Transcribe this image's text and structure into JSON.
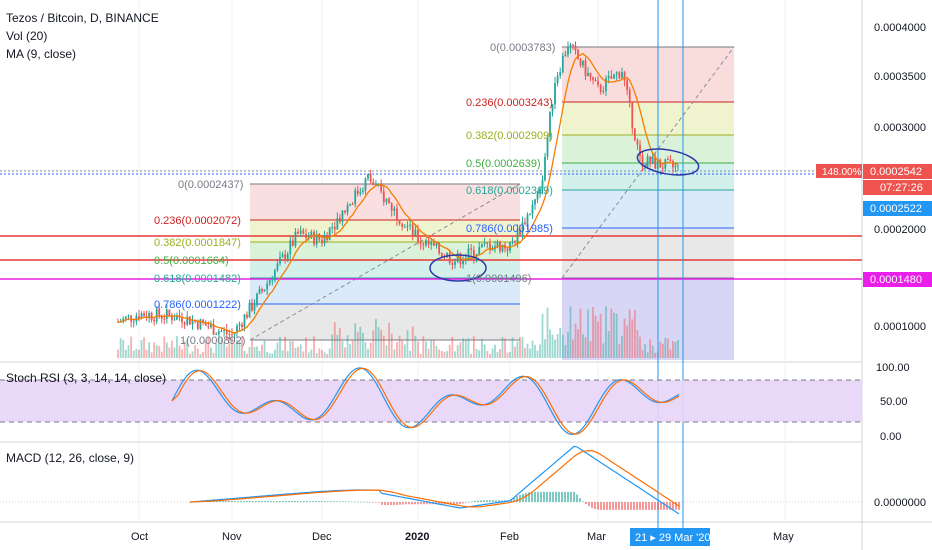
{
  "header": {
    "symbol": "Tezos / Bitcoin, D, BINANCE",
    "vol_label": "Vol (20)",
    "ma_label": "MA (9, close)"
  },
  "panels": {
    "stoch_label": "Stoch RSI (3, 3, 14, 14, close)",
    "macd_label": "MACD (12, 26, close, 9)"
  },
  "price_axis": {
    "ticks": [
      "0.0004000",
      "0.0003500",
      "0.0003000",
      "0.0002000",
      "0.0001000"
    ],
    "current_price": "0.0002542",
    "countdown": "07:27:26",
    "ma_value": "0.0002522",
    "level_tag": "0.0001480",
    "percent_tag": "148.00%"
  },
  "stoch_axis": {
    "ticks": [
      "100.00",
      "50.00",
      "0.00"
    ]
  },
  "macd_axis": {
    "ticks": [
      "0.0000000"
    ]
  },
  "time_axis": {
    "labels": [
      "Oct",
      "Nov",
      "Dec",
      "2020",
      "Feb",
      "Mar",
      "May"
    ],
    "range_tag": "21 ▸ 29 Mar '20"
  },
  "fib_right": [
    {
      "label": "0(0.0003783)",
      "color": "#787b86"
    },
    {
      "label": "0.236(0.0003243)",
      "color": "#cc1f1f"
    },
    {
      "label": "0.382(0.0002909)",
      "color": "#9aaf1f"
    },
    {
      "label": "0.5(0.0002639)",
      "color": "#3fae3f"
    },
    {
      "label": "0.618(0.0002369)",
      "color": "#26a69a"
    },
    {
      "label": "0.786(0.0001985)",
      "color": "#2962ff"
    },
    {
      "label": "1(0.0001496)",
      "color": "#787b86"
    }
  ],
  "fib_left": [
    {
      "label": "0(0.0002437)",
      "color": "#787b86"
    },
    {
      "label": "0.236(0.0002072)",
      "color": "#cc1f1f"
    },
    {
      "label": "0.382(0.0001847)",
      "color": "#9aaf1f"
    },
    {
      "label": "0.5(0.0001664)",
      "color": "#3fae3f"
    },
    {
      "label": "0.618(0.0001482)",
      "color": "#26a69a"
    },
    {
      "label": "0.786(0.0001222)",
      "color": "#2962ff"
    },
    {
      "label": "1(0.0000892)",
      "color": "#787b86"
    }
  ],
  "colors": {
    "up": "#26a69a",
    "down": "#ef5350",
    "ma": "#f57c00",
    "stoch_k": "#2196f3",
    "stoch_d": "#ff6d00",
    "accent": "#2962ff",
    "level_tag": "#e91ee8"
  },
  "chart_data": {
    "type": "line",
    "title": "Tezos / Bitcoin, D, BINANCE",
    "xlabel": "",
    "ylabel": "",
    "ylim": [
      7e-05,
      0.00041
    ],
    "x": [
      "Sep 25",
      "Oct 1",
      "Oct 15",
      "Nov 1",
      "Nov 10",
      "Nov 20",
      "Dec 1",
      "Dec 15",
      "Jan 1",
      "Jan 15",
      "Jan 25",
      "Feb 1",
      "Feb 10",
      "Feb 15",
      "Feb 20",
      "Mar 1",
      "Mar 10",
      "Mar 15",
      "Mar 21"
    ],
    "series": [
      {
        "values": [
          0.000105,
          0.000113,
          0.00011,
          9.2e-05,
          0.000135,
          0.00019,
          0.000185,
          0.000245,
          0.000185,
          0.000165,
          0.00018,
          0.000178,
          0.00023,
          0.00034,
          0.000375,
          0.00033,
          0.00035,
          0.000262,
          0.000254
        ]
      }
    ]
  }
}
